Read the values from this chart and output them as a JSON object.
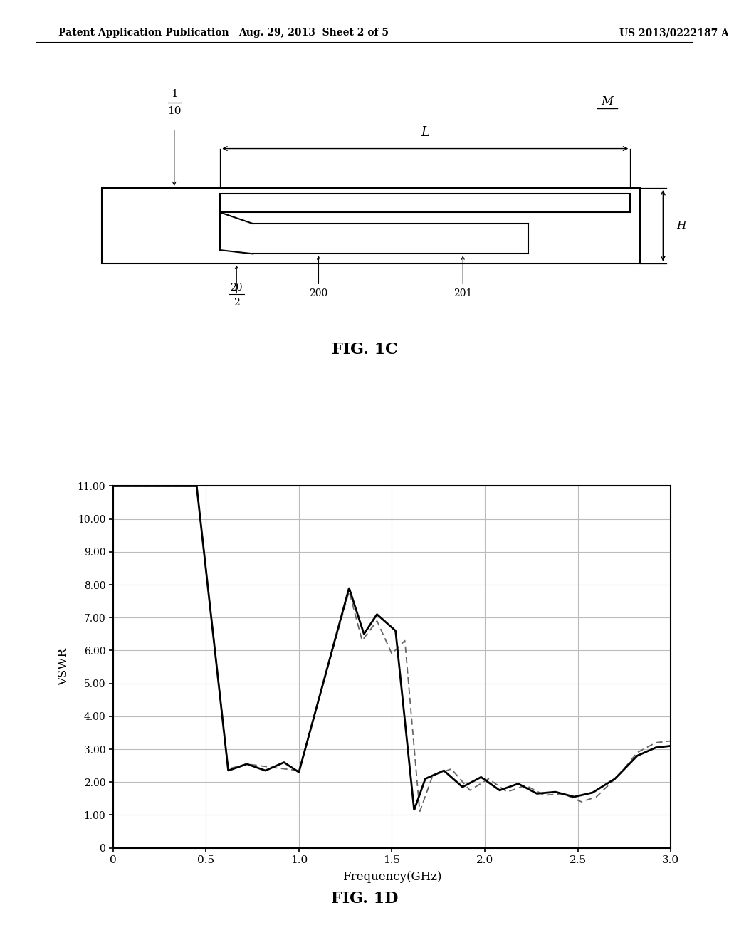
{
  "header_left": "Patent Application Publication",
  "header_mid": "Aug. 29, 2013  Sheet 2 of 5",
  "header_right": "US 2013/0222187 A1",
  "fig1c_label": "FIG. 1C",
  "fig1d_label": "FIG. 1D",
  "plot_xlabel": "Frequency(GHz)",
  "plot_ylabel": "VSWR",
  "xlim": [
    0,
    3.0
  ],
  "ylim": [
    0,
    11.0
  ],
  "xticks": [
    0,
    0.5,
    1.0,
    1.5,
    2.0,
    2.5,
    3.0
  ],
  "yticks": [
    0,
    1.0,
    2.0,
    3.0,
    4.0,
    5.0,
    6.0,
    7.0,
    8.0,
    9.0,
    10.0,
    11.0
  ],
  "ytick_labels": [
    "0",
    "1.00",
    "2.00",
    "3.00",
    "4.00",
    "5.00",
    "6.00",
    "7.00",
    "8.00",
    "9.00",
    "10.00",
    "11.00"
  ],
  "xtick_labels": [
    "0",
    "0.5",
    "1.0",
    "1.5",
    "2.0",
    "2.5",
    "3.0"
  ],
  "bg_color": "#ffffff",
  "line_color_solid": "#000000",
  "line_color_dashed": "#666666",
  "grid_color": "#bbbbbb"
}
